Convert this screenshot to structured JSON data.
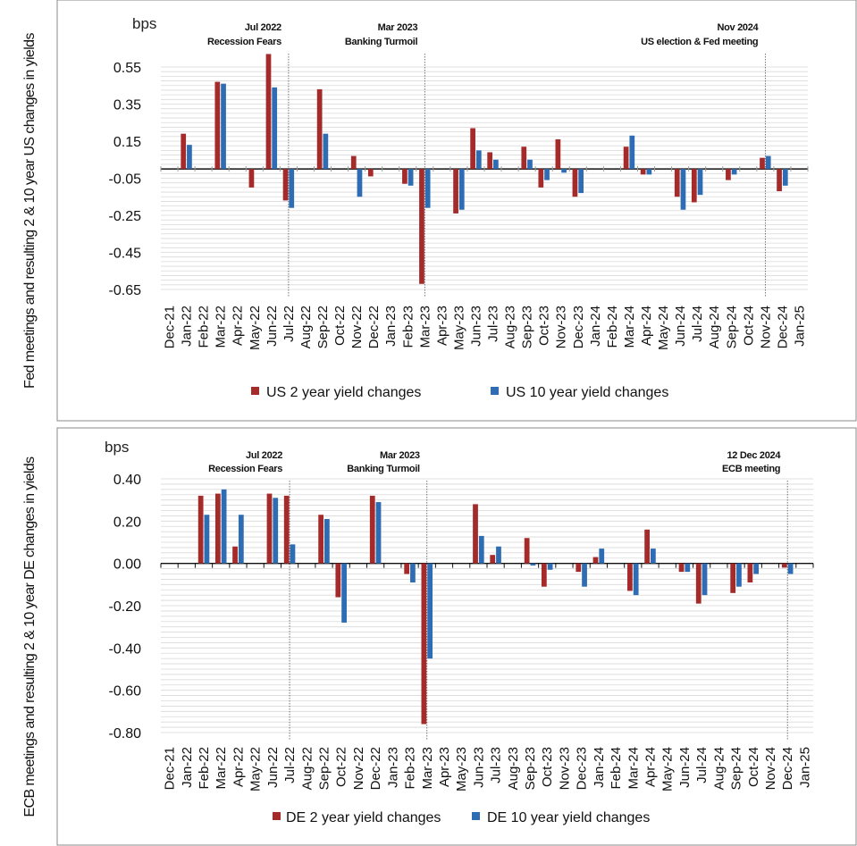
{
  "colors": {
    "two_year": "#A52A2A",
    "ten_year": "#2E6DB4",
    "grid": "#d9d9d9",
    "axis": "#111111"
  },
  "chart_data": [
    {
      "type": "bar",
      "panel": "top",
      "side_label": "Fed meetings and resulting 2 & 10 year US changes in yields",
      "unit_label": "bps",
      "categories": [
        "Dec-21",
        "Jan-22",
        "Feb-22",
        "Mar-22",
        "Apr-22",
        "May-22",
        "Jun-22",
        "Jul-22",
        "Aug-22",
        "Sep-22",
        "Oct-22",
        "Nov-22",
        "Dec-22",
        "Jan-23",
        "Feb-23",
        "Mar-23",
        "Apr-23",
        "May-23",
        "Jun-23",
        "Jul-23",
        "Aug-23",
        "Sep-23",
        "Oct-23",
        "Nov-23",
        "Dec-23",
        "Jan-24",
        "Feb-24",
        "Mar-24",
        "Apr-24",
        "May-24",
        "Jun-24",
        "Jul-24",
        "Aug-24",
        "Sep-24",
        "Oct-24",
        "Nov-24",
        "Dec-24",
        "Jan-25"
      ],
      "yticks": [
        "0.55",
        "0.35",
        "0.15",
        "-0.05",
        "-0.25",
        "-0.45",
        "-0.65"
      ],
      "ylim": [
        -0.65,
        0.55
      ],
      "zero_line": 0,
      "series": [
        {
          "name": "US 2 year yield changes",
          "values": [
            0,
            0.19,
            0,
            0.47,
            0,
            -0.1,
            0.62,
            -0.17,
            0,
            0.43,
            0,
            0.07,
            -0.04,
            0,
            -0.08,
            -0.62,
            0,
            -0.24,
            0.22,
            0.09,
            0,
            0.12,
            -0.1,
            0.16,
            -0.15,
            0,
            0,
            0.12,
            -0.03,
            0,
            -0.15,
            -0.18,
            0,
            -0.06,
            0,
            0.06,
            -0.12,
            0
          ]
        },
        {
          "name": "US 10 year yield changes",
          "values": [
            0,
            0.13,
            0,
            0.46,
            0,
            0,
            0.44,
            -0.21,
            0,
            0.19,
            0,
            -0.15,
            0,
            0,
            -0.09,
            -0.21,
            0,
            -0.22,
            0.1,
            0.05,
            0,
            0.05,
            -0.06,
            -0.02,
            -0.13,
            0,
            0,
            0.18,
            -0.03,
            0,
            -0.22,
            -0.14,
            0,
            -0.03,
            0,
            0.07,
            -0.09,
            0
          ]
        }
      ],
      "annotations": [
        {
          "category": "Jul-22",
          "line1": "Jul 2022",
          "line2": "Recession Fears"
        },
        {
          "category": "Mar-23",
          "line1": "Mar 2023",
          "line2": "Banking Turmoil"
        },
        {
          "category": "Nov-24",
          "line1": "Nov 2024",
          "line2": "US election & Fed meeting"
        }
      ]
    },
    {
      "type": "bar",
      "panel": "bottom",
      "side_label": "ECB meetings and resulting 2 & 10 year DE changes in yields",
      "unit_label": "bps",
      "categories": [
        "Dec-21",
        "Jan-22",
        "Feb-22",
        "Mar-22",
        "Apr-22",
        "May-22",
        "Jun-22",
        "Jul-22",
        "Aug-22",
        "Sep-22",
        "Oct-22",
        "Nov-22",
        "Dec-22",
        "Jan-23",
        "Feb-23",
        "Mar-23",
        "Apr-23",
        "May-23",
        "Jun-23",
        "Jul-23",
        "Aug-23",
        "Sep-23",
        "Oct-23",
        "Nov-23",
        "Dec-23",
        "Jan-24",
        "Feb-24",
        "Mar-24",
        "Apr-24",
        "May-24",
        "Jun-24",
        "Jul-24",
        "Aug-24",
        "Sep-24",
        "Oct-24",
        "Nov-24",
        "Dec-24",
        "Jan-25"
      ],
      "yticks": [
        "0.40",
        "0.20",
        "0.00",
        "-0.20",
        "-0.40",
        "-0.60",
        "-0.80"
      ],
      "ylim": [
        -0.8,
        0.4
      ],
      "zero_line": 0,
      "series": [
        {
          "name": "DE 2 year yield changes",
          "values": [
            0,
            0,
            0.32,
            0.33,
            0.08,
            0,
            0.33,
            0.32,
            0,
            0.23,
            -0.16,
            0,
            0.32,
            0,
            -0.05,
            -0.76,
            0,
            0,
            0.28,
            0.04,
            0,
            0.12,
            -0.11,
            0,
            -0.04,
            0.03,
            0,
            -0.13,
            0.16,
            0,
            -0.04,
            -0.19,
            0,
            -0.14,
            -0.09,
            0,
            -0.02,
            0
          ]
        },
        {
          "name": "DE 10 year yield changes",
          "values": [
            0,
            0,
            0.23,
            0.35,
            0.23,
            0,
            0.31,
            0.09,
            0,
            0.21,
            -0.28,
            0,
            0.29,
            0,
            -0.09,
            -0.45,
            0,
            0,
            0.13,
            0.08,
            0,
            -0.01,
            -0.03,
            0,
            -0.11,
            0.07,
            0,
            -0.15,
            0.07,
            0,
            -0.04,
            -0.15,
            0,
            -0.11,
            -0.05,
            0,
            -0.05,
            0
          ]
        }
      ],
      "annotations": [
        {
          "category": "Jul-22",
          "line1": "Jul 2022",
          "line2": "Recession Fears"
        },
        {
          "category": "Mar-23",
          "line1": "Mar 2023",
          "line2": "Banking Turmoil"
        },
        {
          "category": "Dec-24",
          "line1": "12 Dec 2024",
          "line2": "ECB meeting"
        }
      ]
    }
  ]
}
